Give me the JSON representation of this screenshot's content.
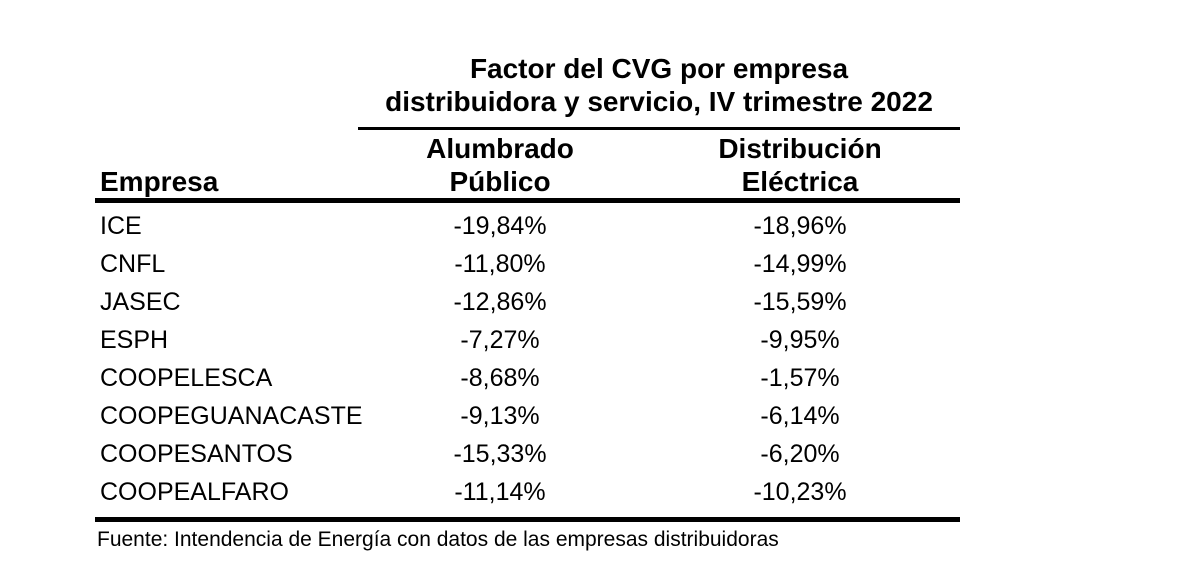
{
  "colors": {
    "background": "#ffffff",
    "text": "#000000",
    "rule": "#000000"
  },
  "title": {
    "line1": "Factor del CVG por empresa",
    "line2": "distribuidora y servicio, IV trimestre 2022"
  },
  "header": {
    "empresa": "Empresa",
    "col1_line1": "Alumbrado",
    "col1_line2": "Público",
    "col2_line1": "Distribución",
    "col2_line2": "Eléctrica"
  },
  "rows": [
    {
      "empresa": "ICE",
      "alumbrado_publico": "-19,84%",
      "distribucion_electrica": "-18,96%"
    },
    {
      "empresa": "CNFL",
      "alumbrado_publico": "-11,80%",
      "distribucion_electrica": "-14,99%"
    },
    {
      "empresa": "JASEC",
      "alumbrado_publico": "-12,86%",
      "distribucion_electrica": "-15,59%"
    },
    {
      "empresa": "ESPH",
      "alumbrado_publico": "-7,27%",
      "distribucion_electrica": "-9,95%"
    },
    {
      "empresa": "COOPELESCA",
      "alumbrado_publico": "-8,68%",
      "distribucion_electrica": "-1,57%"
    },
    {
      "empresa": "COOPEGUANACASTE",
      "alumbrado_publico": "-9,13%",
      "distribucion_electrica": "-6,14%"
    },
    {
      "empresa": "COOPESANTOS",
      "alumbrado_publico": "-15,33%",
      "distribucion_electrica": "-6,20%"
    },
    {
      "empresa": "COOPEALFARO",
      "alumbrado_publico": "-11,14%",
      "distribucion_electrica": "-10,23%"
    }
  ],
  "footer": {
    "source": "Fuente: Intendencia de Energía con datos de las empresas distribuidoras"
  },
  "chart_data": {
    "type": "table",
    "title": "Factor del CVG por empresa distribuidora y servicio, IV trimestre 2022",
    "columns": [
      "Empresa",
      "Alumbrado Público",
      "Distribución Eléctrica"
    ],
    "rows": [
      [
        "ICE",
        "-19,84%",
        "-18,96%"
      ],
      [
        "CNFL",
        "-11,80%",
        "-14,99%"
      ],
      [
        "JASEC",
        "-12,86%",
        "-15,59%"
      ],
      [
        "ESPH",
        "-7,27%",
        "-9,95%"
      ],
      [
        "COOPELESCA",
        "-8,68%",
        "-1,57%"
      ],
      [
        "COOPEGUANACASTE",
        "-9,13%",
        "-6,14%"
      ],
      [
        "COOPESANTOS",
        "-15,33%",
        "-6,20%"
      ],
      [
        "COOPEALFARO",
        "-11,14%",
        "-10,23%"
      ]
    ],
    "values_numeric_percent": {
      "Alumbrado Público": [
        -19.84,
        -11.8,
        -12.86,
        -7.27,
        -8.68,
        -9.13,
        -15.33,
        -11.14
      ],
      "Distribución Eléctrica": [
        -18.96,
        -14.99,
        -15.59,
        -9.95,
        -1.57,
        -6.14,
        -6.2,
        -10.23
      ]
    },
    "source": "Fuente: Intendencia de Energía con datos de las empresas distribuidoras"
  }
}
